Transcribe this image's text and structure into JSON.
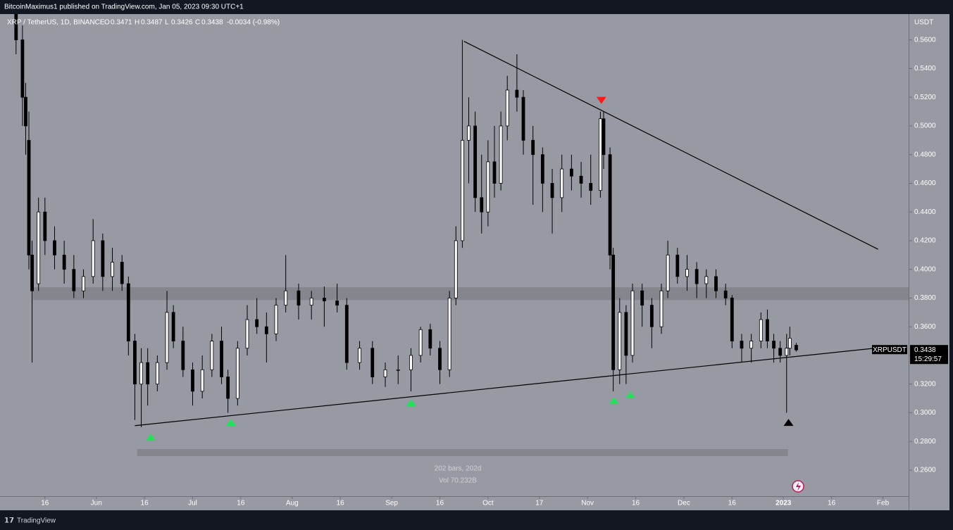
{
  "header": {
    "publisher": "BitcoinMaximus1 published on TradingView.com, Jan 05, 2023 09:30 UTC+1"
  },
  "footer": {
    "brand": "TradingView"
  },
  "chart_data": {
    "type": "candlestick",
    "title": "XRP / TetherUS, 1D, BINANCE",
    "ohlc_labels": [
      "O",
      "H",
      "L",
      "C"
    ],
    "change_label": "-0.0034 (-0.98%)",
    "y_unit": "USDT",
    "symbol": "XRPUSDT",
    "countdown": "15:29:57",
    "info": [
      "202 bars, 202d",
      "Vol 70.232B"
    ],
    "up_color": "#ffffff",
    "down_color": "#000000",
    "xlim": [
      1,
      284
    ],
    "ylim": [
      0.232,
      0.578
    ],
    "x": [
      6,
      8,
      9,
      10,
      11,
      13,
      15,
      18,
      21,
      24,
      27,
      30,
      33,
      36,
      39,
      41,
      43,
      45,
      47,
      50,
      53,
      55,
      58,
      61,
      64,
      67,
      70,
      72,
      75,
      78,
      81,
      84,
      87,
      90,
      94,
      98,
      102,
      106,
      109,
      113,
      117,
      121,
      125,
      129,
      132,
      135,
      138,
      141,
      143,
      145,
      147,
      149,
      151,
      153,
      155,
      157,
      159,
      162,
      164,
      167,
      170,
      173,
      176,
      179,
      182,
      185,
      188,
      189,
      191,
      192,
      194,
      196,
      198,
      201,
      204,
      207,
      209,
      212,
      215,
      218,
      221,
      224,
      227,
      229,
      232,
      235,
      238,
      240,
      242,
      244,
      246,
      247,
      249
    ],
    "open": [
      0.58,
      0.56,
      0.52,
      0.49,
      0.41,
      0.39,
      0.44,
      0.42,
      0.41,
      0.4,
      0.385,
      0.395,
      0.42,
      0.395,
      0.405,
      0.39,
      0.35,
      0.32,
      0.335,
      0.32,
      0.335,
      0.37,
      0.35,
      0.33,
      0.315,
      0.33,
      0.35,
      0.325,
      0.31,
      0.345,
      0.365,
      0.36,
      0.355,
      0.375,
      0.385,
      0.375,
      0.38,
      0.378,
      0.375,
      0.335,
      0.345,
      0.325,
      0.33,
      0.33,
      0.34,
      0.358,
      0.345,
      0.33,
      0.38,
      0.42,
      0.49,
      0.5,
      0.45,
      0.44,
      0.475,
      0.46,
      0.5,
      0.525,
      0.52,
      0.49,
      0.48,
      0.46,
      0.45,
      0.47,
      0.465,
      0.46,
      0.455,
      0.505,
      0.48,
      0.41,
      0.33,
      0.37,
      0.34,
      0.385,
      0.375,
      0.36,
      0.385,
      0.41,
      0.395,
      0.4,
      0.39,
      0.395,
      0.385,
      0.38,
      0.35,
      0.345,
      0.35,
      0.365,
      0.35,
      0.345,
      0.34,
      0.345,
      0.3471
    ],
    "high": [
      0.6,
      0.57,
      0.53,
      0.51,
      0.42,
      0.45,
      0.45,
      0.43,
      0.42,
      0.41,
      0.4,
      0.435,
      0.425,
      0.415,
      0.41,
      0.395,
      0.355,
      0.345,
      0.345,
      0.34,
      0.385,
      0.375,
      0.36,
      0.335,
      0.34,
      0.355,
      0.36,
      0.33,
      0.35,
      0.375,
      0.38,
      0.37,
      0.38,
      0.41,
      0.39,
      0.385,
      0.388,
      0.39,
      0.38,
      0.35,
      0.35,
      0.335,
      0.34,
      0.345,
      0.36,
      0.362,
      0.35,
      0.385,
      0.43,
      0.56,
      0.52,
      0.51,
      0.48,
      0.49,
      0.5,
      0.51,
      0.535,
      0.55,
      0.525,
      0.5,
      0.485,
      0.47,
      0.48,
      0.48,
      0.475,
      0.48,
      0.51,
      0.51,
      0.485,
      0.415,
      0.38,
      0.375,
      0.39,
      0.39,
      0.38,
      0.39,
      0.42,
      0.415,
      0.41,
      0.405,
      0.4,
      0.4,
      0.39,
      0.382,
      0.355,
      0.355,
      0.37,
      0.372,
      0.355,
      0.35,
      0.355,
      0.36,
      0.3487
    ],
    "low": [
      0.55,
      0.5,
      0.48,
      0.4,
      0.335,
      0.385,
      0.41,
      0.4,
      0.39,
      0.38,
      0.38,
      0.39,
      0.385,
      0.385,
      0.385,
      0.34,
      0.295,
      0.29,
      0.305,
      0.315,
      0.33,
      0.345,
      0.325,
      0.305,
      0.31,
      0.325,
      0.32,
      0.3,
      0.305,
      0.34,
      0.355,
      0.335,
      0.35,
      0.37,
      0.365,
      0.365,
      0.36,
      0.37,
      0.33,
      0.33,
      0.32,
      0.318,
      0.32,
      0.315,
      0.335,
      0.34,
      0.32,
      0.325,
      0.375,
      0.415,
      0.46,
      0.44,
      0.425,
      0.43,
      0.45,
      0.455,
      0.49,
      0.51,
      0.48,
      0.445,
      0.44,
      0.425,
      0.44,
      0.455,
      0.45,
      0.445,
      0.45,
      0.47,
      0.4,
      0.315,
      0.32,
      0.32,
      0.335,
      0.36,
      0.345,
      0.355,
      0.38,
      0.39,
      0.385,
      0.38,
      0.38,
      0.38,
      0.375,
      0.345,
      0.335,
      0.335,
      0.345,
      0.345,
      0.335,
      0.335,
      0.3,
      0.34,
      0.3426
    ],
    "close": [
      0.56,
      0.52,
      0.5,
      0.41,
      0.385,
      0.44,
      0.42,
      0.41,
      0.4,
      0.385,
      0.395,
      0.42,
      0.395,
      0.405,
      0.39,
      0.35,
      0.32,
      0.335,
      0.32,
      0.335,
      0.37,
      0.35,
      0.33,
      0.315,
      0.33,
      0.35,
      0.325,
      0.31,
      0.345,
      0.365,
      0.36,
      0.355,
      0.375,
      0.385,
      0.375,
      0.38,
      0.378,
      0.375,
      0.335,
      0.345,
      0.325,
      0.33,
      0.33,
      0.34,
      0.358,
      0.345,
      0.33,
      0.38,
      0.42,
      0.49,
      0.5,
      0.45,
      0.44,
      0.475,
      0.46,
      0.5,
      0.525,
      0.52,
      0.49,
      0.48,
      0.46,
      0.45,
      0.47,
      0.465,
      0.46,
      0.455,
      0.505,
      0.48,
      0.41,
      0.33,
      0.37,
      0.34,
      0.385,
      0.375,
      0.36,
      0.385,
      0.41,
      0.395,
      0.4,
      0.39,
      0.395,
      0.385,
      0.38,
      0.35,
      0.345,
      0.35,
      0.365,
      0.35,
      0.345,
      0.34,
      0.345,
      0.352,
      0.3438
    ],
    "yticks": [
      {
        "value": 0.26,
        "label": "0.2600"
      },
      {
        "value": 0.28,
        "label": "0.2800"
      },
      {
        "value": 0.3,
        "label": "0.3000"
      },
      {
        "value": 0.32,
        "label": "0.3200"
      },
      {
        "value": 0.34,
        "label": "0.3400"
      },
      {
        "value": 0.36,
        "label": "0.3600"
      },
      {
        "value": 0.38,
        "label": "0.3800"
      },
      {
        "value": 0.4,
        "label": "0.4000"
      },
      {
        "value": 0.42,
        "label": "0.4200"
      },
      {
        "value": 0.44,
        "label": "0.4400"
      },
      {
        "value": 0.46,
        "label": "0.4600"
      },
      {
        "value": 0.48,
        "label": "0.4800"
      },
      {
        "value": 0.5,
        "label": "0.5000"
      },
      {
        "value": 0.52,
        "label": "0.5200"
      },
      {
        "value": 0.54,
        "label": "0.5400"
      },
      {
        "value": 0.56,
        "label": "0.5600"
      }
    ],
    "xticks": [
      {
        "value": 15,
        "label": "16"
      },
      {
        "value": 31,
        "label": "Jun"
      },
      {
        "value": 46,
        "label": "16"
      },
      {
        "value": 61,
        "label": "Jul"
      },
      {
        "value": 76,
        "label": "16"
      },
      {
        "value": 92,
        "label": "Aug"
      },
      {
        "value": 107,
        "label": "16"
      },
      {
        "value": 123,
        "label": "Sep"
      },
      {
        "value": 138,
        "label": "16"
      },
      {
        "value": 153,
        "label": "Oct"
      },
      {
        "value": 169,
        "label": "17"
      },
      {
        "value": 184,
        "label": "Nov"
      },
      {
        "value": 199,
        "label": "16"
      },
      {
        "value": 214,
        "label": "Dec"
      },
      {
        "value": 229,
        "label": "16"
      },
      {
        "value": 245,
        "label": "2023"
      },
      {
        "value": 260,
        "label": "16"
      },
      {
        "value": 276,
        "label": "Feb"
      }
    ],
    "trendlines": [
      {
        "x": [
          145.5,
          274.5
        ],
        "y": [
          0.559,
          0.414
        ]
      },
      {
        "x": [
          43,
          273.4
        ],
        "y": [
          0.291,
          0.345
        ]
      }
    ],
    "zones": [
      {
        "x": [
          11.3,
          284
        ],
        "y": [
          0.3786,
          0.3875
        ],
        "color": "#80838b"
      },
      {
        "x": [
          43.7,
          246.4
        ],
        "y": [
          0.2698,
          0.2747
        ],
        "color": "#7f828a"
      }
    ],
    "markers": [
      {
        "x": 47.9,
        "y": 0.283,
        "shape": "up",
        "color": "#22e05a"
      },
      {
        "x": 72.9,
        "y": 0.2933,
        "shape": "up",
        "color": "#22e05a"
      },
      {
        "x": 129,
        "y": 0.307,
        "shape": "up",
        "color": "#22e05a"
      },
      {
        "x": 192.2,
        "y": 0.3085,
        "shape": "up",
        "color": "#22e05a"
      },
      {
        "x": 197.3,
        "y": 0.3125,
        "shape": "up",
        "color": "#22e05a"
      },
      {
        "x": 188.3,
        "y": 0.5178,
        "shape": "down",
        "color": "#ff1a1a"
      },
      {
        "x": 246.6,
        "y": 0.2933,
        "shape": "up",
        "color": "#000000"
      }
    ]
  }
}
